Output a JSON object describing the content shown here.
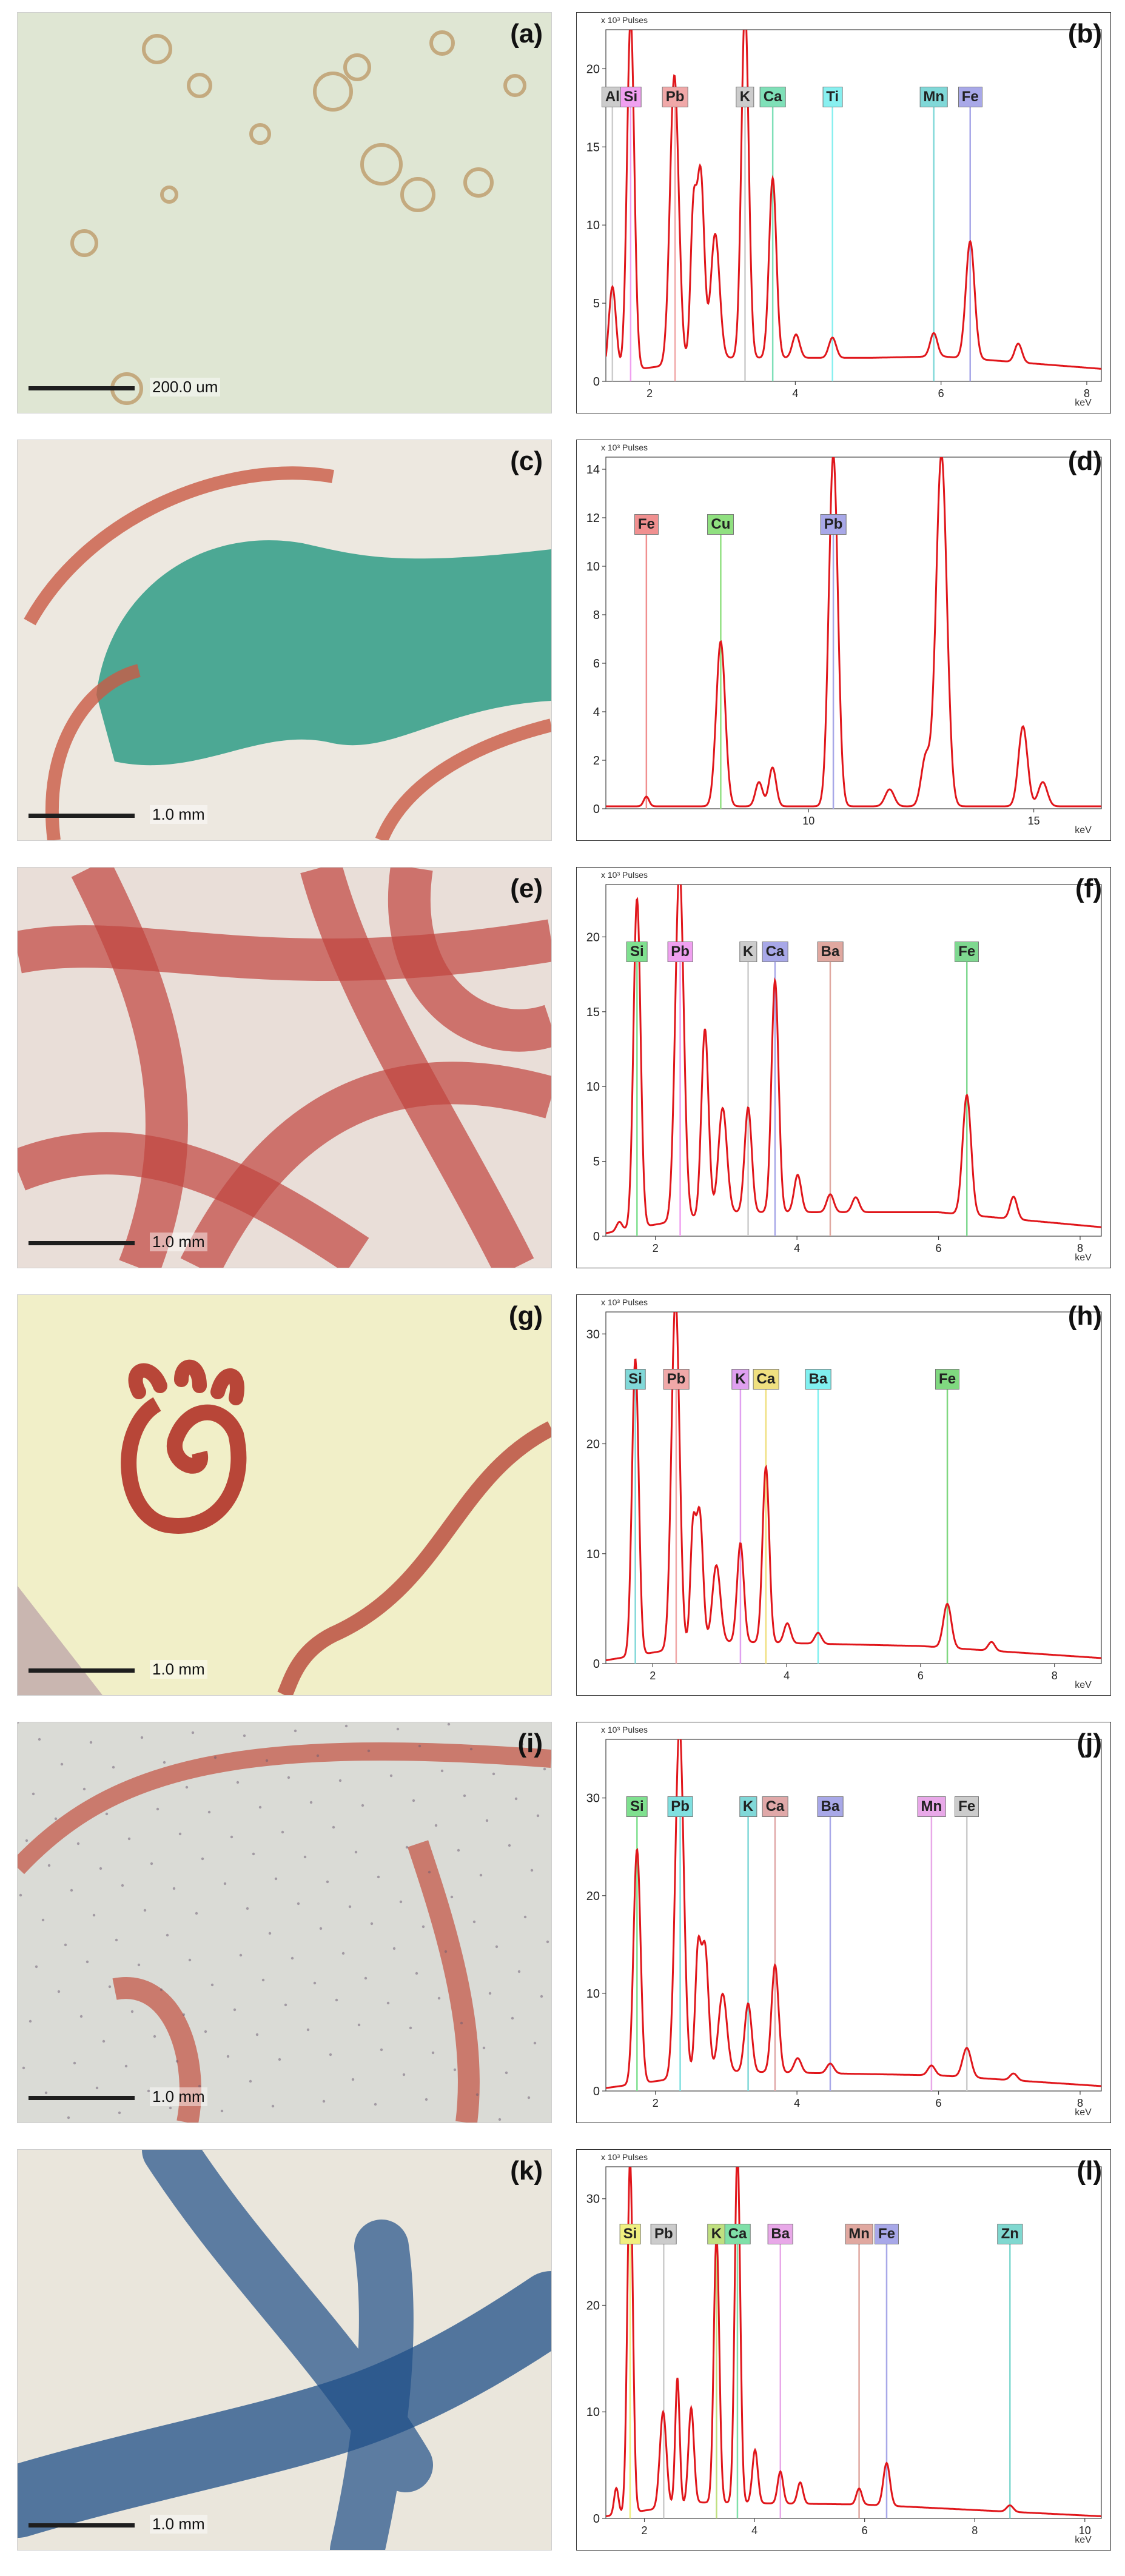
{
  "panels": [
    {
      "micro_label": "(a)",
      "scale_text": "200.0 um",
      "spec_label": "(b)",
      "ylabel": "x 10³ Pulses",
      "xlabel": "keV",
      "colors": {
        "bg": "#dfe6d3",
        "accent": "#b58a52"
      },
      "chart_data": {
        "type": "line",
        "title": "",
        "xlabel": "keV",
        "ylabel": "x 10³ Pulses",
        "xlim": [
          1.4,
          8.2
        ],
        "ylim": [
          0,
          22.5
        ],
        "xticks": [
          2,
          4,
          6,
          8
        ],
        "yticks": [
          0,
          5,
          10,
          15,
          20
        ],
        "peaks": [
          [
            1.49,
            5.5,
            0.05
          ],
          [
            1.74,
            22.5,
            0.05
          ],
          [
            2.34,
            18.5,
            0.06
          ],
          [
            2.6,
            9,
            0.04
          ],
          [
            2.7,
            12,
            0.05
          ],
          [
            2.9,
            8,
            0.06
          ],
          [
            3.31,
            22.5,
            0.05
          ],
          [
            3.69,
            11.5,
            0.05
          ],
          [
            4.01,
            1.5,
            0.05
          ],
          [
            4.51,
            1.3,
            0.05
          ],
          [
            5.9,
            1.5,
            0.05
          ],
          [
            6.4,
            7.5,
            0.06
          ],
          [
            7.06,
            1.2,
            0.05
          ]
        ],
        "baseline": [
          [
            1.4,
            0.5
          ],
          [
            3,
            1.5
          ],
          [
            5,
            1.5
          ],
          [
            6,
            1.6
          ],
          [
            8.2,
            0.8
          ]
        ],
        "markers": [
          {
            "label": "Al",
            "x": 1.49,
            "color": "#cccccc"
          },
          {
            "label": "Si",
            "x": 1.74,
            "color": "#f0a0f0"
          },
          {
            "label": "Pb",
            "x": 2.35,
            "color": "#f0a8a8"
          },
          {
            "label": "K",
            "x": 3.31,
            "color": "#cccccc"
          },
          {
            "label": "Ca",
            "x": 3.69,
            "color": "#7fe0b8"
          },
          {
            "label": "Ti",
            "x": 4.51,
            "color": "#88f0f0"
          },
          {
            "label": "Mn",
            "x": 5.9,
            "color": "#80d8d8"
          },
          {
            "label": "Fe",
            "x": 6.4,
            "color": "#a8a8e8"
          }
        ]
      }
    },
    {
      "micro_label": "(c)",
      "scale_text": "1.0 mm",
      "spec_label": "(d)",
      "ylabel": "x 10³ Pulses",
      "xlabel": "keV",
      "colors": {
        "bg": "#ede8e0",
        "accent": "#2f9c86"
      },
      "chart_data": {
        "type": "line",
        "title": "",
        "xlabel": "keV",
        "ylabel": "x 10³ Pulses",
        "xlim": [
          5.5,
          16.5
        ],
        "ylim": [
          0,
          14.5
        ],
        "xticks": [
          10,
          15
        ],
        "yticks": [
          0,
          2,
          4,
          6,
          8,
          10,
          12,
          14
        ],
        "peaks": [
          [
            6.4,
            0.4,
            0.06
          ],
          [
            8.05,
            6.8,
            0.1
          ],
          [
            8.9,
            1,
            0.08
          ],
          [
            9.2,
            1.6,
            0.08
          ],
          [
            10.55,
            14.5,
            0.1
          ],
          [
            11.8,
            0.7,
            0.1
          ],
          [
            12.6,
            2,
            0.1
          ],
          [
            12.95,
            14.5,
            0.12
          ],
          [
            14.76,
            3.3,
            0.1
          ],
          [
            15.2,
            1,
            0.1
          ]
        ],
        "baseline": [
          [
            5.5,
            0.1
          ],
          [
            16.5,
            0.1
          ]
        ],
        "markers": [
          {
            "label": "Fe",
            "x": 6.4,
            "color": "#f09090"
          },
          {
            "label": "Cu",
            "x": 8.05,
            "color": "#90e080"
          },
          {
            "label": "Pb",
            "x": 10.55,
            "color": "#a8a8e8"
          }
        ]
      }
    },
    {
      "micro_label": "(e)",
      "scale_text": "1.0 mm",
      "spec_label": "(f)",
      "ylabel": "x 10³ Pulses",
      "xlabel": "keV",
      "colors": {
        "bg": "#e9ded8",
        "accent": "#c0453f"
      },
      "chart_data": {
        "type": "line",
        "title": "",
        "xlabel": "keV",
        "ylabel": "x 10³ Pulses",
        "xlim": [
          1.3,
          8.3
        ],
        "ylim": [
          0,
          23.5
        ],
        "xticks": [
          2,
          4,
          6,
          8
        ],
        "yticks": [
          0,
          5,
          10,
          15,
          20
        ],
        "peaks": [
          [
            1.49,
            0.6,
            0.04
          ],
          [
            1.74,
            22,
            0.05
          ],
          [
            2.34,
            23.5,
            0.06
          ],
          [
            2.7,
            12.5,
            0.05
          ],
          [
            2.95,
            7,
            0.06
          ],
          [
            3.31,
            7,
            0.05
          ],
          [
            3.69,
            15.5,
            0.05
          ],
          [
            4.01,
            2.5,
            0.05
          ],
          [
            4.47,
            1.2,
            0.05
          ],
          [
            4.83,
            1,
            0.05
          ],
          [
            6.4,
            8,
            0.06
          ],
          [
            7.06,
            1.5,
            0.05
          ]
        ],
        "baseline": [
          [
            1.3,
            0.2
          ],
          [
            3,
            1.6
          ],
          [
            6,
            1.6
          ],
          [
            8.3,
            0.6
          ]
        ],
        "markers": [
          {
            "label": "Si",
            "x": 1.74,
            "color": "#7fe08f"
          },
          {
            "label": "Pb",
            "x": 2.35,
            "color": "#f0a0f0"
          },
          {
            "label": "K",
            "x": 3.31,
            "color": "#cccccc"
          },
          {
            "label": "Ca",
            "x": 3.69,
            "color": "#a8a8e8"
          },
          {
            "label": "Ba",
            "x": 4.47,
            "color": "#e0a8a0"
          },
          {
            "label": "Fe",
            "x": 6.4,
            "color": "#7fd890"
          }
        ]
      }
    },
    {
      "micro_label": "(g)",
      "scale_text": "1.0 mm",
      "spec_label": "(h)",
      "ylabel": "x 10³ Pulses",
      "xlabel": "keV",
      "colors": {
        "bg": "#f1efc8",
        "accent": "#b84638"
      },
      "chart_data": {
        "type": "line",
        "title": "",
        "xlabel": "keV",
        "ylabel": "x 10³ Pulses",
        "xlim": [
          1.3,
          8.7
        ],
        "ylim": [
          0,
          32
        ],
        "xticks": [
          2,
          4,
          6,
          8
        ],
        "yticks": [
          0,
          10,
          20,
          30
        ],
        "peaks": [
          [
            1.74,
            27,
            0.05
          ],
          [
            2.34,
            32,
            0.06
          ],
          [
            2.6,
            10,
            0.04
          ],
          [
            2.7,
            12,
            0.05
          ],
          [
            2.95,
            7,
            0.06
          ],
          [
            3.31,
            9,
            0.05
          ],
          [
            3.69,
            16,
            0.05
          ],
          [
            4.01,
            1.8,
            0.05
          ],
          [
            4.47,
            1,
            0.05
          ],
          [
            6.4,
            4,
            0.06
          ],
          [
            7.06,
            0.8,
            0.05
          ]
        ],
        "baseline": [
          [
            1.3,
            0.3
          ],
          [
            3,
            2
          ],
          [
            6,
            1.6
          ],
          [
            8.7,
            0.5
          ]
        ],
        "markers": [
          {
            "label": "Si",
            "x": 1.74,
            "color": "#80d8d8"
          },
          {
            "label": "Pb",
            "x": 2.35,
            "color": "#f0a8a8"
          },
          {
            "label": "K",
            "x": 3.31,
            "color": "#e0a0f0"
          },
          {
            "label": "Ca",
            "x": 3.69,
            "color": "#f0e080"
          },
          {
            "label": "Ba",
            "x": 4.47,
            "color": "#80f0f0"
          },
          {
            "label": "Fe",
            "x": 6.4,
            "color": "#80d880"
          }
        ]
      }
    },
    {
      "micro_label": "(i)",
      "scale_text": "1.0 mm",
      "spec_label": "(j)",
      "ylabel": "x 10³ Pulses",
      "xlabel": "keV",
      "colors": {
        "bg": "#dadbd6",
        "accent": "#c45a4a"
      },
      "chart_data": {
        "type": "line",
        "title": "",
        "xlabel": "keV",
        "ylabel": "x 10³ Pulses",
        "xlim": [
          1.3,
          8.3
        ],
        "ylim": [
          0,
          36
        ],
        "xticks": [
          2,
          4,
          6,
          8
        ],
        "yticks": [
          0,
          10,
          20,
          30
        ],
        "peaks": [
          [
            1.74,
            24,
            0.05
          ],
          [
            2.34,
            36,
            0.06
          ],
          [
            2.6,
            12,
            0.04
          ],
          [
            2.7,
            13,
            0.05
          ],
          [
            2.95,
            8,
            0.06
          ],
          [
            3.31,
            7,
            0.05
          ],
          [
            3.69,
            11,
            0.05
          ],
          [
            4.01,
            1.5,
            0.05
          ],
          [
            4.47,
            1,
            0.05
          ],
          [
            5.9,
            1,
            0.05
          ],
          [
            6.4,
            3,
            0.06
          ],
          [
            7.06,
            0.7,
            0.05
          ]
        ],
        "baseline": [
          [
            1.3,
            0.3
          ],
          [
            3,
            2
          ],
          [
            6,
            1.6
          ],
          [
            8.3,
            0.5
          ]
        ],
        "markers": [
          {
            "label": "Si",
            "x": 1.74,
            "color": "#7fe08f"
          },
          {
            "label": "Pb",
            "x": 2.35,
            "color": "#80e0e0"
          },
          {
            "label": "K",
            "x": 3.31,
            "color": "#80d8d8"
          },
          {
            "label": "Ca",
            "x": 3.69,
            "color": "#e0a8a8"
          },
          {
            "label": "Ba",
            "x": 4.47,
            "color": "#a8a8e8"
          },
          {
            "label": "Mn",
            "x": 5.9,
            "color": "#e8a8e8"
          },
          {
            "label": "Fe",
            "x": 6.4,
            "color": "#cccccc"
          }
        ]
      }
    },
    {
      "micro_label": "(k)",
      "scale_text": "1.0 mm",
      "spec_label": "(l)",
      "ylabel": "x 10³ Pulses",
      "xlabel": "keV",
      "colors": {
        "bg": "#eae6dc",
        "accent": "#1f4f88"
      },
      "chart_data": {
        "type": "line",
        "title": "",
        "xlabel": "keV",
        "ylabel": "x 10³ Pulses",
        "xlim": [
          1.3,
          10.3
        ],
        "ylim": [
          0,
          33
        ],
        "xticks": [
          2,
          4,
          6,
          8,
          10
        ],
        "yticks": [
          0,
          10,
          20,
          30
        ],
        "peaks": [
          [
            1.49,
            2.5,
            0.04
          ],
          [
            1.74,
            33,
            0.05
          ],
          [
            2.34,
            9,
            0.06
          ],
          [
            2.6,
            12,
            0.04
          ],
          [
            2.85,
            9,
            0.05
          ],
          [
            3.31,
            25,
            0.05
          ],
          [
            3.69,
            33,
            0.05
          ],
          [
            4.01,
            5,
            0.05
          ],
          [
            4.47,
            3,
            0.05
          ],
          [
            4.83,
            2,
            0.05
          ],
          [
            5.9,
            1.5,
            0.05
          ],
          [
            6.4,
            4,
            0.06
          ],
          [
            8.64,
            0.6,
            0.06
          ]
        ],
        "baseline": [
          [
            1.3,
            0.2
          ],
          [
            3,
            1.5
          ],
          [
            6,
            1.3
          ],
          [
            10.3,
            0.2
          ]
        ],
        "markers": [
          {
            "label": "Si",
            "x": 1.74,
            "color": "#f0f080"
          },
          {
            "label": "Pb",
            "x": 2.35,
            "color": "#cccccc"
          },
          {
            "label": "K",
            "x": 3.31,
            "color": "#c0e080"
          },
          {
            "label": "Ca",
            "x": 3.69,
            "color": "#80e0a8"
          },
          {
            "label": "Ba",
            "x": 4.47,
            "color": "#e8a8e8"
          },
          {
            "label": "Mn",
            "x": 5.9,
            "color": "#e0a8a0"
          },
          {
            "label": "Fe",
            "x": 6.4,
            "color": "#a8a8e8"
          },
          {
            "label": "Zn",
            "x": 8.64,
            "color": "#80d8d0"
          }
        ]
      }
    }
  ]
}
